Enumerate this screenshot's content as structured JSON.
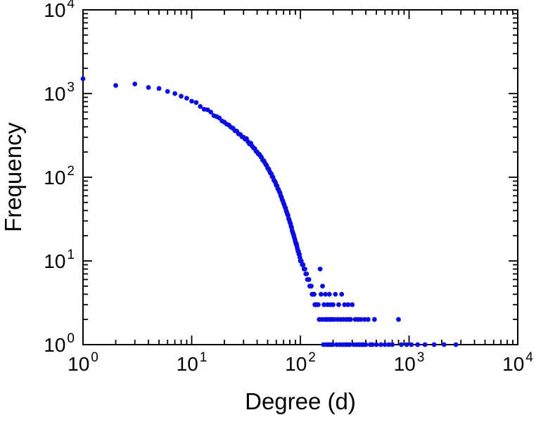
{
  "figure": {
    "background": "#ffffff"
  },
  "chart_data": {
    "type": "scatter",
    "title": "",
    "xlabel": "Degree (d)",
    "ylabel": "Frequency",
    "xscale": "log",
    "yscale": "log",
    "xlim": [
      1,
      10000
    ],
    "ylim": [
      1,
      10000
    ],
    "tick_label_base": "10",
    "x_tick_exponents": [
      0,
      1,
      2,
      3,
      4
    ],
    "y_tick_exponents": [
      0,
      1,
      2,
      3,
      4
    ],
    "grid": false,
    "axis_color": "#000000",
    "marker": {
      "shape": "circle",
      "color": "#0a0ce0",
      "radius": 3.4
    },
    "points": [
      [
        1,
        1500
      ],
      [
        2,
        1250
      ],
      [
        3,
        1300
      ],
      [
        4,
        1180
      ],
      [
        5,
        1150
      ],
      [
        6,
        1060
      ],
      [
        7,
        1000
      ],
      [
        8,
        930
      ],
      [
        9,
        880
      ],
      [
        10,
        810
      ],
      [
        11,
        780
      ],
      [
        12,
        700
      ],
      [
        13,
        650
      ],
      [
        14,
        640
      ],
      [
        15,
        600
      ],
      [
        16,
        545
      ],
      [
        17,
        530
      ],
      [
        18,
        510
      ],
      [
        19,
        470
      ],
      [
        20,
        455
      ],
      [
        21,
        430
      ],
      [
        22,
        420
      ],
      [
        23,
        395
      ],
      [
        24,
        385
      ],
      [
        25,
        360
      ],
      [
        26,
        355
      ],
      [
        27,
        330
      ],
      [
        28,
        325
      ],
      [
        29,
        305
      ],
      [
        30,
        300
      ],
      [
        31,
        285
      ],
      [
        32,
        290
      ],
      [
        33,
        265
      ],
      [
        34,
        250
      ],
      [
        35,
        255
      ],
      [
        36,
        235
      ],
      [
        37,
        225
      ],
      [
        38,
        220
      ],
      [
        39,
        205
      ],
      [
        40,
        200
      ],
      [
        41,
        190
      ],
      [
        42,
        188
      ],
      [
        43,
        178
      ],
      [
        44,
        172
      ],
      [
        45,
        160
      ],
      [
        46,
        158
      ],
      [
        47,
        150
      ],
      [
        48,
        142
      ],
      [
        49,
        138
      ],
      [
        50,
        128
      ],
      [
        51,
        126
      ],
      [
        52,
        118
      ],
      [
        53,
        112
      ],
      [
        54,
        110
      ],
      [
        55,
        102
      ],
      [
        56,
        100
      ],
      [
        57,
        92
      ],
      [
        58,
        90
      ],
      [
        59,
        86
      ],
      [
        60,
        80
      ],
      [
        61,
        79
      ],
      [
        62,
        73
      ],
      [
        63,
        71
      ],
      [
        64,
        67
      ],
      [
        65,
        65
      ],
      [
        66,
        60
      ],
      [
        67,
        58
      ],
      [
        68,
        54
      ],
      [
        69,
        52
      ],
      [
        70,
        49
      ],
      [
        71,
        47
      ],
      [
        72,
        44
      ],
      [
        73,
        43
      ],
      [
        74,
        40
      ],
      [
        75,
        38
      ],
      [
        76,
        36
      ],
      [
        77,
        35
      ],
      [
        78,
        32
      ],
      [
        79,
        31
      ],
      [
        80,
        29
      ],
      [
        81,
        28
      ],
      [
        82,
        26
      ],
      [
        83,
        25
      ],
      [
        84,
        23
      ],
      [
        85,
        22
      ],
      [
        86,
        21
      ],
      [
        87,
        20
      ],
      [
        88,
        19
      ],
      [
        89,
        18
      ],
      [
        90,
        17
      ],
      [
        91,
        16
      ],
      [
        92,
        16
      ],
      [
        93,
        15
      ],
      [
        94,
        14
      ],
      [
        95,
        13
      ],
      [
        96,
        13
      ],
      [
        97,
        12
      ],
      [
        98,
        12
      ],
      [
        99,
        11
      ],
      [
        100,
        10
      ],
      [
        102,
        10
      ],
      [
        104,
        9
      ],
      [
        106,
        9
      ],
      [
        108,
        8
      ],
      [
        110,
        8
      ],
      [
        112,
        7
      ],
      [
        114,
        7
      ],
      [
        116,
        6
      ],
      [
        118,
        6
      ],
      [
        120,
        6
      ],
      [
        122,
        5
      ],
      [
        124,
        5
      ],
      [
        126,
        5
      ],
      [
        128,
        4
      ],
      [
        130,
        4
      ],
      [
        132,
        4
      ],
      [
        134,
        4
      ],
      [
        136,
        3
      ],
      [
        138,
        3
      ],
      [
        140,
        3
      ],
      [
        143,
        3
      ],
      [
        146,
        3
      ],
      [
        149,
        2
      ],
      [
        152,
        8
      ],
      [
        155,
        4
      ],
      [
        158,
        2
      ],
      [
        160,
        5
      ],
      [
        163,
        1
      ],
      [
        165,
        3
      ],
      [
        168,
        2
      ],
      [
        170,
        4
      ],
      [
        173,
        1
      ],
      [
        175,
        2
      ],
      [
        178,
        3
      ],
      [
        180,
        2
      ],
      [
        183,
        1
      ],
      [
        185,
        4
      ],
      [
        188,
        2
      ],
      [
        190,
        3
      ],
      [
        193,
        1
      ],
      [
        195,
        2
      ],
      [
        198,
        1
      ],
      [
        200,
        3
      ],
      [
        205,
        2
      ],
      [
        210,
        4
      ],
      [
        215,
        1
      ],
      [
        220,
        2
      ],
      [
        225,
        3
      ],
      [
        230,
        1
      ],
      [
        235,
        2
      ],
      [
        240,
        4
      ],
      [
        245,
        1
      ],
      [
        250,
        2
      ],
      [
        255,
        3
      ],
      [
        260,
        1
      ],
      [
        265,
        2
      ],
      [
        270,
        1
      ],
      [
        275,
        3
      ],
      [
        280,
        2
      ],
      [
        285,
        1
      ],
      [
        290,
        2
      ],
      [
        300,
        3
      ],
      [
        310,
        1
      ],
      [
        320,
        2
      ],
      [
        330,
        1
      ],
      [
        340,
        2
      ],
      [
        350,
        1
      ],
      [
        360,
        2
      ],
      [
        370,
        1
      ],
      [
        380,
        1
      ],
      [
        390,
        2
      ],
      [
        400,
        1
      ],
      [
        420,
        2
      ],
      [
        440,
        1
      ],
      [
        460,
        1
      ],
      [
        480,
        2
      ],
      [
        500,
        1
      ],
      [
        550,
        1
      ],
      [
        600,
        1
      ],
      [
        650,
        1
      ],
      [
        700,
        1
      ],
      [
        800,
        2
      ],
      [
        850,
        1
      ],
      [
        950,
        1
      ],
      [
        1050,
        1
      ],
      [
        1200,
        1
      ],
      [
        1400,
        1
      ],
      [
        1700,
        1
      ],
      [
        2100,
        1
      ],
      [
        2700,
        1
      ]
    ]
  }
}
